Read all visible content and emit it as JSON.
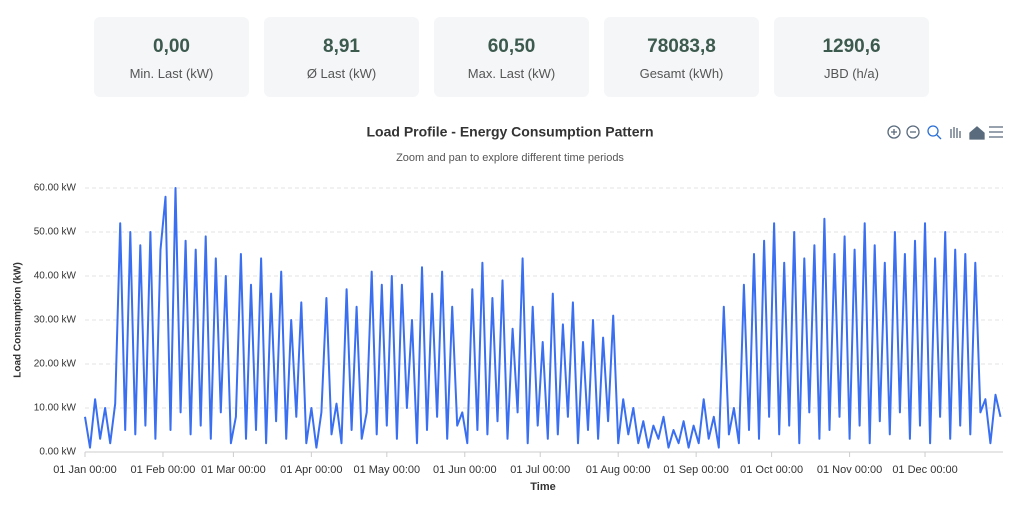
{
  "stats": [
    {
      "value": "0,00",
      "label": "Min. Last (kW)"
    },
    {
      "value": "8,91",
      "label": "Ø Last (kW)"
    },
    {
      "value": "60,50",
      "label": "Max. Last (kW)"
    },
    {
      "value": "78083,8",
      "label": "Gesamt (kWh)"
    },
    {
      "value": "1290,6",
      "label": "JBD (h/a)"
    }
  ],
  "chart_data": {
    "type": "line",
    "title": "Load Profile - Energy Consumption Pattern",
    "subtitle": "Zoom and pan to explore different time periods",
    "x_label": "Time",
    "y_label": "Load Consumption (kW)",
    "grid": true,
    "xlim": [
      0,
      365
    ],
    "xticks": [
      {
        "value": 0,
        "label": "01 Jan 00:00"
      },
      {
        "value": 31,
        "label": "01 Feb 00:00"
      },
      {
        "value": 59,
        "label": "01 Mar 00:00"
      },
      {
        "value": 90,
        "label": "01 Apr 00:00"
      },
      {
        "value": 120,
        "label": "01 May 00:00"
      },
      {
        "value": 151,
        "label": "01 Jun 00:00"
      },
      {
        "value": 181,
        "label": "01 Jul 00:00"
      },
      {
        "value": 212,
        "label": "01 Aug 00:00"
      },
      {
        "value": 243,
        "label": "01 Sep 00:00"
      },
      {
        "value": 273,
        "label": "01 Oct 00:00"
      },
      {
        "value": 304,
        "label": "01 Nov 00:00"
      },
      {
        "value": 334,
        "label": "01 Dec 00:00"
      }
    ],
    "ylim": [
      0,
      60
    ],
    "yticks": [
      {
        "value": 0,
        "label": "0.00 kW"
      },
      {
        "value": 10,
        "label": "10.00 kW"
      },
      {
        "value": 20,
        "label": "20.00 kW"
      },
      {
        "value": 30,
        "label": "30.00 kW"
      },
      {
        "value": 40,
        "label": "40.00 kW"
      },
      {
        "value": 50,
        "label": "50.00 kW"
      },
      {
        "value": 60,
        "label": "60.00 kW"
      }
    ],
    "x": [
      0,
      2,
      4,
      6,
      8,
      10,
      12,
      14,
      16,
      18,
      20,
      22,
      24,
      26,
      28,
      30,
      32,
      34,
      36,
      38,
      40,
      42,
      44,
      46,
      48,
      50,
      52,
      54,
      56,
      58,
      60,
      62,
      64,
      66,
      68,
      70,
      72,
      74,
      76,
      78,
      80,
      82,
      84,
      86,
      88,
      90,
      92,
      94,
      96,
      98,
      100,
      102,
      104,
      106,
      108,
      110,
      112,
      114,
      116,
      118,
      120,
      122,
      124,
      126,
      128,
      130,
      132,
      134,
      136,
      138,
      140,
      142,
      144,
      146,
      148,
      150,
      152,
      154,
      156,
      158,
      160,
      162,
      164,
      166,
      168,
      170,
      172,
      174,
      176,
      178,
      180,
      182,
      184,
      186,
      188,
      190,
      192,
      194,
      196,
      198,
      200,
      202,
      204,
      206,
      208,
      210,
      212,
      214,
      216,
      218,
      220,
      222,
      224,
      226,
      228,
      230,
      232,
      234,
      236,
      238,
      240,
      242,
      244,
      246,
      248,
      250,
      252,
      254,
      256,
      258,
      260,
      262,
      264,
      266,
      268,
      270,
      272,
      274,
      276,
      278,
      280,
      282,
      284,
      286,
      288,
      290,
      292,
      294,
      296,
      298,
      300,
      302,
      304,
      306,
      308,
      310,
      312,
      314,
      316,
      318,
      320,
      322,
      324,
      326,
      328,
      330,
      332,
      334,
      336,
      338,
      340,
      342,
      344,
      346,
      348,
      350,
      352,
      354,
      356,
      358,
      360,
      362,
      364
    ],
    "series": [
      {
        "color": "#3a6ff2",
        "values": [
          8,
          1,
          12,
          3,
          10,
          2,
          11,
          52,
          5,
          50,
          4,
          47,
          6,
          50,
          3,
          46,
          58,
          5,
          60,
          9,
          48,
          4,
          46,
          6,
          49,
          3,
          44,
          9,
          40,
          2,
          8,
          45,
          3,
          38,
          5,
          44,
          2,
          36,
          7,
          41,
          3,
          30,
          8,
          34,
          2,
          10,
          1,
          9,
          35,
          4,
          11,
          2,
          37,
          5,
          33,
          3,
          9,
          41,
          4,
          38,
          6,
          40,
          3,
          38,
          10,
          30,
          2,
          42,
          5,
          36,
          8,
          41,
          3,
          33,
          6,
          9,
          2,
          37,
          5,
          43,
          4,
          35,
          7,
          39,
          3,
          28,
          9,
          44,
          2,
          33,
          6,
          25,
          3,
          36,
          4,
          29,
          8,
          34,
          2,
          25,
          5,
          30,
          3,
          26,
          7,
          31,
          2,
          12,
          4,
          10,
          2,
          7,
          1,
          6,
          3,
          8,
          1,
          5,
          2,
          7,
          1,
          6,
          2,
          12,
          3,
          8,
          1,
          33,
          4,
          10,
          2,
          38,
          5,
          45,
          3,
          48,
          8,
          52,
          4,
          43,
          6,
          50,
          2,
          44,
          9,
          47,
          3,
          53,
          5,
          45,
          8,
          49,
          3,
          46,
          6,
          52,
          2,
          47,
          7,
          43,
          4,
          50,
          9,
          45,
          3,
          48,
          6,
          52,
          2,
          44,
          8,
          50,
          3,
          46,
          6,
          45,
          4,
          43,
          9,
          12,
          2,
          13,
          8
        ]
      }
    ]
  }
}
